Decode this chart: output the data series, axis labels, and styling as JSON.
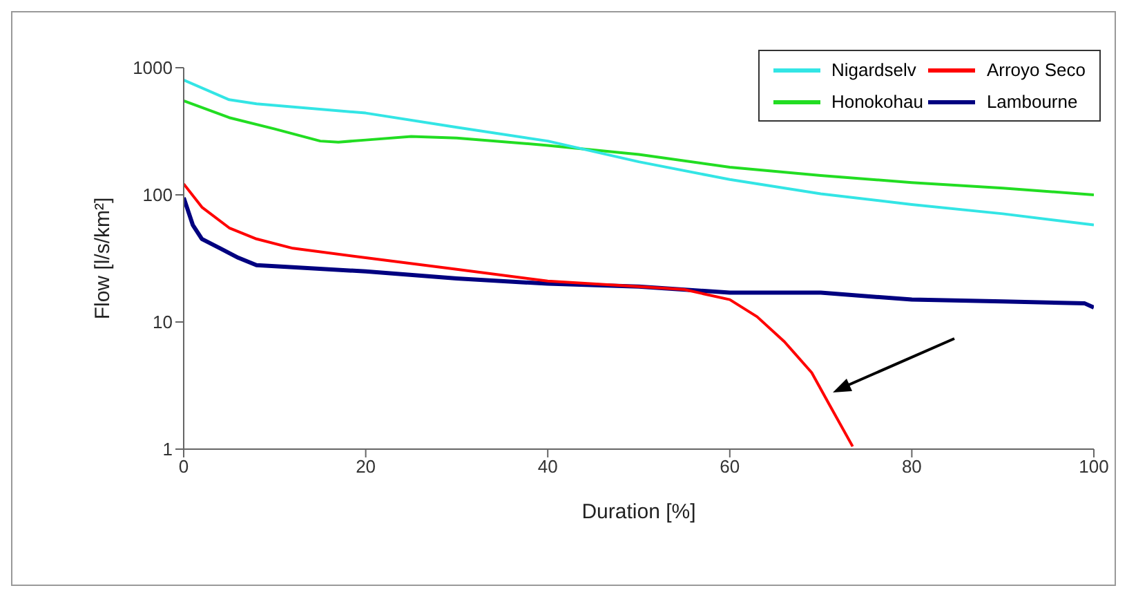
{
  "chart_data": {
    "type": "line",
    "xlabel": "Duration [%]",
    "ylabel": "Flow [l/s/km²]",
    "log": "y",
    "xlim": [
      0,
      100
    ],
    "xticks": [
      0,
      20,
      40,
      60,
      80,
      100
    ],
    "ylim": [
      1,
      1000
    ],
    "yticks": [
      1,
      10,
      100,
      1000
    ],
    "grid": false,
    "legend": "top right",
    "marker": "none",
    "line_style": "solid",
    "series": [
      {
        "name": "Nigardselv",
        "color": "#33e5e5",
        "x": [
          0,
          5,
          8,
          20,
          30,
          40,
          50,
          60,
          70,
          80,
          90,
          100
        ],
        "values": [
          800,
          560,
          520,
          440,
          340,
          265,
          182,
          132,
          102,
          84,
          71,
          58
        ]
      },
      {
        "name": "Arroyo Seco",
        "color": "#ff0000",
        "x": [
          0,
          2,
          5,
          8,
          12,
          20,
          30,
          40,
          50,
          55,
          60,
          63,
          66,
          69,
          71,
          73.5
        ],
        "values": [
          122,
          80,
          55,
          45,
          38,
          32,
          26,
          21,
          19,
          18,
          15,
          11,
          7,
          4,
          2.2,
          1.05
        ]
      },
      {
        "name": "Honokohau",
        "color": "#22dd22",
        "x": [
          0,
          5,
          10,
          15,
          17,
          20,
          25,
          30,
          40,
          50,
          60,
          70,
          80,
          90,
          100
        ],
        "values": [
          550,
          405,
          330,
          265,
          260,
          270,
          288,
          280,
          245,
          208,
          165,
          142,
          125,
          113,
          100
        ]
      },
      {
        "name": "Lambourne",
        "color": "#000080",
        "x": [
          0,
          1,
          2,
          4,
          6,
          8,
          12,
          20,
          30,
          40,
          50,
          60,
          70,
          80,
          90,
          99,
          100
        ],
        "values": [
          95,
          58,
          45,
          38,
          32,
          28,
          27,
          25,
          22,
          20,
          19,
          17,
          17,
          15,
          14.5,
          14,
          13
        ]
      }
    ]
  }
}
